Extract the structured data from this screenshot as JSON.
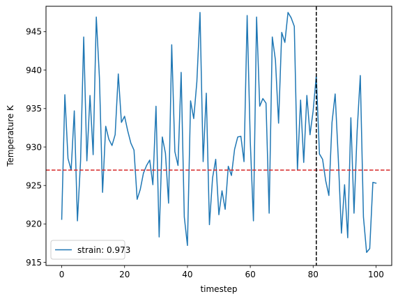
{
  "chart_data": {
    "type": "line",
    "title": "",
    "xlabel": "timestep",
    "ylabel": "Temperature K",
    "xlim": [
      -5,
      105
    ],
    "ylim": [
      914.6,
      948.3
    ],
    "xticks": [
      0,
      20,
      40,
      60,
      80,
      100
    ],
    "yticks": [
      915,
      920,
      925,
      930,
      935,
      940,
      945
    ],
    "grid": false,
    "legend_position": "lower-left",
    "series": [
      {
        "name": "strain: 0.973",
        "color": "#1f77b4",
        "x": [
          0,
          1,
          2,
          3,
          4,
          5,
          6,
          7,
          8,
          9,
          10,
          11,
          12,
          13,
          14,
          15,
          16,
          17,
          18,
          19,
          20,
          21,
          22,
          23,
          24,
          25,
          26,
          27,
          28,
          29,
          30,
          31,
          32,
          33,
          34,
          35,
          36,
          37,
          38,
          39,
          40,
          41,
          42,
          43,
          44,
          45,
          46,
          47,
          48,
          49,
          50,
          51,
          52,
          53,
          54,
          55,
          56,
          57,
          58,
          59,
          60,
          61,
          62,
          63,
          64,
          65,
          66,
          67,
          68,
          69,
          70,
          71,
          72,
          73,
          74,
          75,
          76,
          77,
          78,
          79,
          80,
          81,
          82,
          83,
          84,
          85,
          86,
          87,
          88,
          89,
          90,
          91,
          92,
          93,
          94,
          95,
          96,
          97,
          98,
          99,
          100
        ],
        "values": [
          920.6,
          936.8,
          928.5,
          927.0,
          934.7,
          920.4,
          928.2,
          944.3,
          928.2,
          936.7,
          929.0,
          946.9,
          939.0,
          924.1,
          932.7,
          931.0,
          930.2,
          931.6,
          939.5,
          933.2,
          934.0,
          932.1,
          930.5,
          929.6,
          923.2,
          924.5,
          926.6,
          927.6,
          928.3,
          925.1,
          935.3,
          918.3,
          931.3,
          929.2,
          922.7,
          943.3,
          929.4,
          927.6,
          939.7,
          920.9,
          917.2,
          936.0,
          933.7,
          938.5,
          947.5,
          928.1,
          937.0,
          919.9,
          926.0,
          928.4,
          921.2,
          924.3,
          921.9,
          927.5,
          926.3,
          929.7,
          931.3,
          931.4,
          928.1,
          947.1,
          930.7,
          920.4,
          946.9,
          935.3,
          936.3,
          935.7,
          921.4,
          944.3,
          941.3,
          933.1,
          944.9,
          943.6,
          947.5,
          946.8,
          945.7,
          927.0,
          936.1,
          928.0,
          936.7,
          931.6,
          934.7,
          939.3,
          929.1,
          928.4,
          925.6,
          923.7,
          933.2,
          936.9,
          928.5,
          918.8,
          925.1,
          918.2,
          933.8,
          921.4,
          932.1,
          939.3,
          920.9,
          916.3,
          916.8,
          925.4,
          925.3
        ]
      }
    ],
    "reference_lines": [
      {
        "orientation": "horizontal",
        "value": 927.0,
        "color": "#d62728",
        "style": "dashed"
      },
      {
        "orientation": "vertical",
        "value": 81,
        "color": "#000000",
        "style": "dashed"
      }
    ]
  }
}
